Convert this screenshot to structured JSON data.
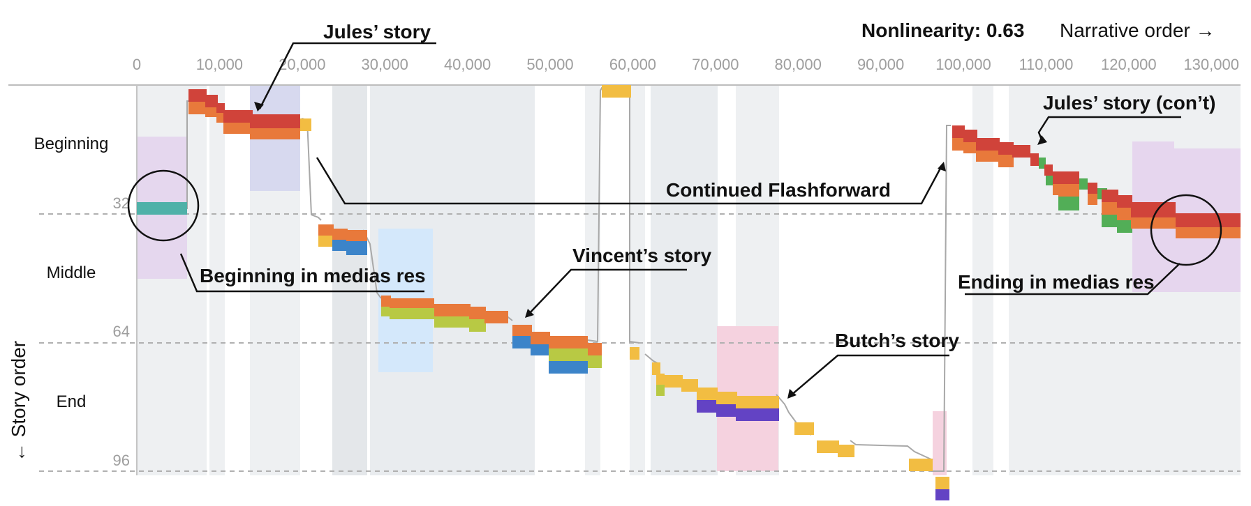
{
  "header": {
    "nonlinearity_label": "Nonlinearity: 0.63",
    "narrative_label": "Narrative order →"
  },
  "axes": {
    "x_ticks": [
      "0",
      "10,000",
      "20,000",
      "30,000",
      "40,000",
      "50,000",
      "60,000",
      "70,000",
      "80,000",
      "90,000",
      "100,000",
      "110,000",
      "120,000",
      "130,000"
    ],
    "y_title": "← Story order",
    "y_sections": [
      "Beginning",
      "Middle",
      "End"
    ],
    "y_ticks": [
      "32",
      "64",
      "96"
    ]
  },
  "annotations": {
    "jules": "Jules’ story",
    "jules_cont": "Jules’ story (con’t)",
    "continued": "Continued Flashforward",
    "beginning_mr": "Beginning in medias res",
    "vincent": "Vincent’s story",
    "ending_mr": "Ending in medias res",
    "butch": "Butch’s story"
  },
  "colors": {
    "red": "#d0433a",
    "orange": "#e8793b",
    "yellow": "#f2bd42",
    "lime": "#b8c944",
    "green": "#52ae57",
    "blue": "#3c84c9",
    "purple": "#6343c4",
    "teal": "#4fb1a8"
  }
}
